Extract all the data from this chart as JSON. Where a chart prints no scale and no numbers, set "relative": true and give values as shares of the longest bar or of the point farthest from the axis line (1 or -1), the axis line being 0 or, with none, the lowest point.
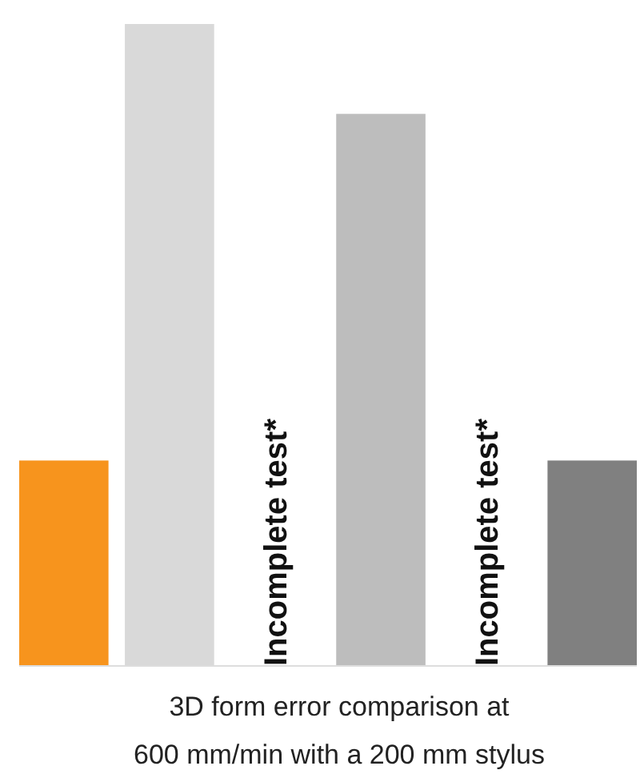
{
  "chart_data": {
    "type": "bar",
    "title": "3D form error comparison at 600 mm/min with a 200 mm stylus",
    "relative": true,
    "categories": [
      null,
      null,
      "Incomplete test*",
      null,
      "Incomplete test*",
      null
    ],
    "values": [
      0.32,
      1,
      null,
      0.86,
      null,
      0.32
    ],
    "colors": [
      "#f7941d",
      "#d9d9d9",
      null,
      "#bdbdbd",
      null,
      "#808080"
    ]
  }
}
